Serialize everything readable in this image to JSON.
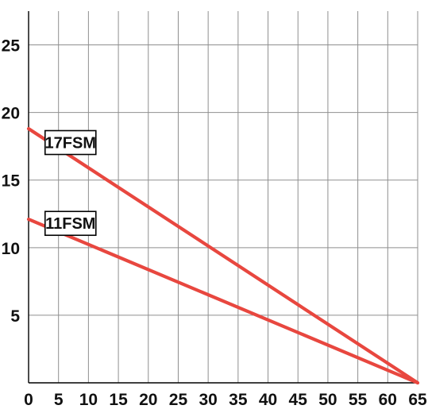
{
  "chart_data": {
    "type": "line",
    "title": "",
    "xlabel": "",
    "ylabel": "",
    "xlim": [
      0,
      65
    ],
    "ylim": [
      0,
      27.5
    ],
    "grid": true,
    "x_ticks": [
      "0",
      "5",
      "10",
      "15",
      "20",
      "25",
      "30",
      "35",
      "40",
      "45",
      "50",
      "55",
      "60",
      "65"
    ],
    "y_ticks": [
      "5",
      "10",
      "15",
      "20",
      "25"
    ],
    "series": [
      {
        "name": "17FSM",
        "color": "#e8473f",
        "x": [
          0,
          65
        ],
        "y": [
          18.8,
          0
        ]
      },
      {
        "name": "11FSM",
        "color": "#e8473f",
        "x": [
          0,
          65
        ],
        "y": [
          12.1,
          0
        ]
      }
    ]
  }
}
